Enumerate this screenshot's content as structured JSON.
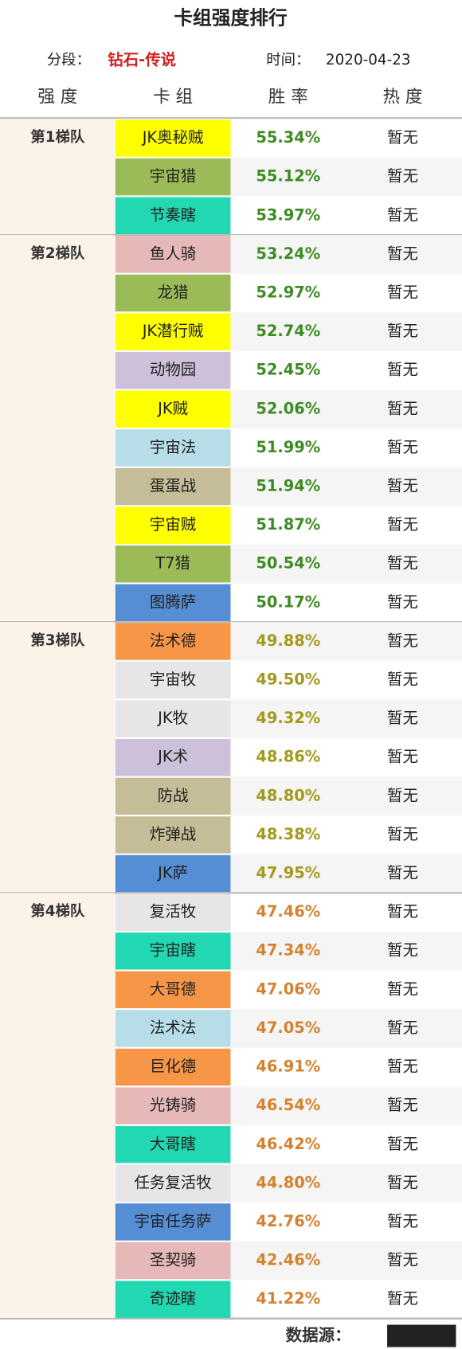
{
  "header": {
    "title": "卡组强度排行",
    "segment_label": "分段：",
    "segment_value": "钻石-传说",
    "time_label": "时间：",
    "time_value": "2020-04-23"
  },
  "columns": [
    "强 度",
    "卡 组",
    "胜 率",
    "热 度"
  ],
  "tiers": [
    {
      "name": "第1梯队",
      "rate_color": "#3d8b22",
      "rows": [
        {
          "deck": "JK奥秘贼",
          "color": "#ffff00",
          "win_rate": "55.34%",
          "heat": "暂无"
        },
        {
          "deck": "宇宙猎",
          "color": "#9bbb59",
          "win_rate": "55.12%",
          "heat": "暂无"
        },
        {
          "deck": "节奏瞎",
          "color": "#22d8b2",
          "win_rate": "53.97%",
          "heat": "暂无"
        }
      ]
    },
    {
      "name": "第2梯队",
      "rate_color": "#3d8b22",
      "rows": [
        {
          "deck": "鱼人骑",
          "color": "#e6b8b7",
          "win_rate": "53.24%",
          "heat": "暂无"
        },
        {
          "deck": "龙猎",
          "color": "#9bbb59",
          "win_rate": "52.97%",
          "heat": "暂无"
        },
        {
          "deck": "JK潜行贼",
          "color": "#ffff00",
          "win_rate": "52.74%",
          "heat": "暂无"
        },
        {
          "deck": "动物园",
          "color": "#ccc0da",
          "win_rate": "52.45%",
          "heat": "暂无"
        },
        {
          "deck": "JK贼",
          "color": "#ffff00",
          "win_rate": "52.06%",
          "heat": "暂无"
        },
        {
          "deck": "宇宙法",
          "color": "#b7dee8",
          "win_rate": "51.99%",
          "heat": "暂无"
        },
        {
          "deck": "蛋蛋战",
          "color": "#c4bd97",
          "win_rate": "51.94%",
          "heat": "暂无"
        },
        {
          "deck": "宇宙贼",
          "color": "#ffff00",
          "win_rate": "51.87%",
          "heat": "暂无"
        },
        {
          "deck": "T7猎",
          "color": "#9bbb59",
          "win_rate": "50.54%",
          "heat": "暂无"
        },
        {
          "deck": "图腾萨",
          "color": "#558ed5",
          "win_rate": "50.17%",
          "heat": "暂无"
        }
      ]
    },
    {
      "name": "第3梯队",
      "rate_color": "#a39a1c",
      "rows": [
        {
          "deck": "法术德",
          "color": "#f79646",
          "win_rate": "49.88%",
          "heat": "暂无"
        },
        {
          "deck": "宇宙牧",
          "color": "#e7e6e6",
          "win_rate": "49.50%",
          "heat": "暂无"
        },
        {
          "deck": "JK牧",
          "color": "#e7e6e6",
          "win_rate": "49.32%",
          "heat": "暂无"
        },
        {
          "deck": "JK术",
          "color": "#ccc0da",
          "win_rate": "48.86%",
          "heat": "暂无"
        },
        {
          "deck": "防战",
          "color": "#c4bd97",
          "win_rate": "48.80%",
          "heat": "暂无"
        },
        {
          "deck": "炸弹战",
          "color": "#c4bd97",
          "win_rate": "48.38%",
          "heat": "暂无"
        },
        {
          "deck": "JK萨",
          "color": "#558ed5",
          "win_rate": "47.95%",
          "heat": "暂无"
        }
      ]
    },
    {
      "name": "第4梯队",
      "rate_color": "#d4822e",
      "rows": [
        {
          "deck": "复活牧",
          "color": "#e7e6e6",
          "win_rate": "47.46%",
          "heat": "暂无"
        },
        {
          "deck": "宇宙瞎",
          "color": "#22d8b2",
          "win_rate": "47.34%",
          "heat": "暂无"
        },
        {
          "deck": "大哥德",
          "color": "#f79646",
          "win_rate": "47.06%",
          "heat": "暂无"
        },
        {
          "deck": "法术法",
          "color": "#b7dee8",
          "win_rate": "47.05%",
          "heat": "暂无"
        },
        {
          "deck": "巨化德",
          "color": "#f79646",
          "win_rate": "46.91%",
          "heat": "暂无"
        },
        {
          "deck": "光铸骑",
          "color": "#e6b8b7",
          "win_rate": "46.54%",
          "heat": "暂无"
        },
        {
          "deck": "大哥瞎",
          "color": "#22d8b2",
          "win_rate": "46.42%",
          "heat": "暂无"
        },
        {
          "deck": "任务复活牧",
          "color": "#e7e6e6",
          "win_rate": "44.80%",
          "heat": "暂无"
        },
        {
          "deck": "宇宙任务萨",
          "color": "#558ed5",
          "win_rate": "42.76%",
          "heat": "暂无"
        },
        {
          "deck": "圣契骑",
          "color": "#e6b8b7",
          "win_rate": "42.46%",
          "heat": "暂无"
        },
        {
          "deck": "奇迹瞎",
          "color": "#22d8b2",
          "win_rate": "41.22%",
          "heat": "暂无"
        }
      ]
    }
  ],
  "footer": {
    "source_label": "数据源："
  }
}
